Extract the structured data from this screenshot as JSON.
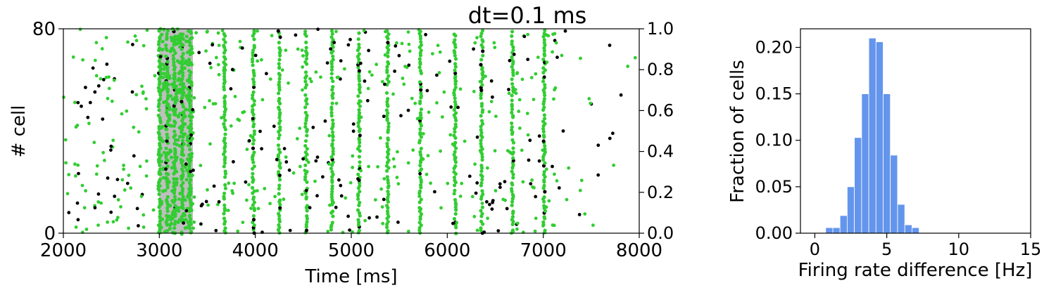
{
  "chart_data": [
    {
      "type": "scatter",
      "title": "dt=0.1 ms",
      "xlabel": "Time [ms]",
      "ylabel": "# cell",
      "xlim": [
        2000,
        8000
      ],
      "ylim": [
        0,
        80
      ],
      "xticks": [
        "2000",
        "3000",
        "4000",
        "5000",
        "6000",
        "7000",
        "8000"
      ],
      "yticks": [
        "0",
        "80"
      ],
      "right_ylim": [
        0,
        1
      ],
      "right_yticks": [
        "0.0",
        "0.2",
        "0.4",
        "0.6",
        "0.8",
        "1.0"
      ],
      "shaded_span": [
        3000,
        3350
      ],
      "burst_times": [
        3000,
        3080,
        3160,
        3240,
        3320,
        3680,
        3980,
        4250,
        4530,
        4800,
        5080,
        5380,
        5720,
        6080,
        6360,
        6680,
        7010
      ],
      "background_rate_window": [
        2000,
        7200
      ],
      "colors": {
        "excitatory": "#32cd32",
        "inhibitory": "#000000",
        "shade": "#bfbfbf"
      },
      "grid": false,
      "legend": "none"
    },
    {
      "type": "bar",
      "xlabel": "Firing rate difference [Hz]",
      "ylabel": "Fraction of cells",
      "xlim": [
        -1,
        15
      ],
      "ylim": [
        0,
        0.22
      ],
      "xticks": [
        "0",
        "5",
        "10",
        "15"
      ],
      "yticks": [
        "0.00",
        "0.05",
        "0.10",
        "0.15",
        "0.20"
      ],
      "bin_edges": [
        0.75,
        1.25,
        1.75,
        2.25,
        2.75,
        3.25,
        3.75,
        4.25,
        4.75,
        5.25,
        5.75,
        6.25,
        6.75,
        7.25
      ],
      "values": [
        0.006,
        0.006,
        0.019,
        0.05,
        0.103,
        0.15,
        0.21,
        0.206,
        0.15,
        0.084,
        0.031,
        0.009,
        0.006
      ],
      "colors": {
        "bar": "#6495ed",
        "edge": "#ffffff"
      },
      "grid": false,
      "legend": "none"
    }
  ]
}
